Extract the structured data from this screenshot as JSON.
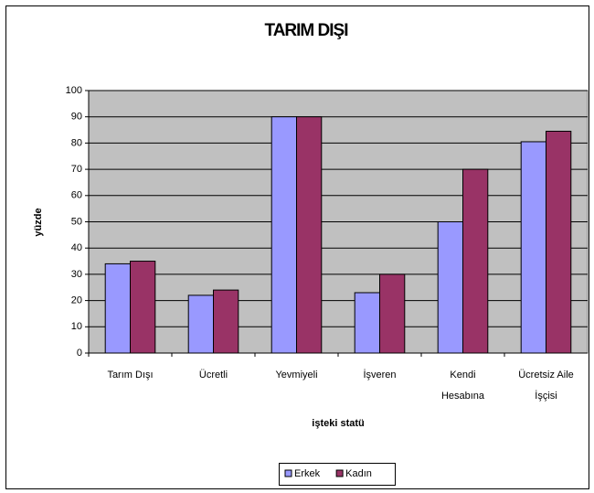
{
  "chart_data": {
    "type": "bar",
    "title": "TARIM DIŞI",
    "x_label": "işteki statü",
    "y_label": "yüzde",
    "categories": [
      "Tarım Dışı",
      "Ücretli",
      "Yevmiyeli",
      "İşveren",
      "Kendi Hesabına",
      "Ücretsiz Aile İşçisi"
    ],
    "series": [
      {
        "name": "Erkek",
        "color": "#9999ff",
        "values": [
          34,
          22,
          90,
          23,
          50,
          80.5
        ]
      },
      {
        "name": "Kadın",
        "color": "#993366",
        "values": [
          35,
          24,
          90,
          30,
          70,
          84.5
        ]
      }
    ],
    "ylim": [
      0,
      100
    ],
    "yticks": [
      0,
      10,
      20,
      30,
      40,
      50,
      60,
      70,
      80,
      90,
      100
    ],
    "grid": true,
    "legend": "bottom"
  }
}
